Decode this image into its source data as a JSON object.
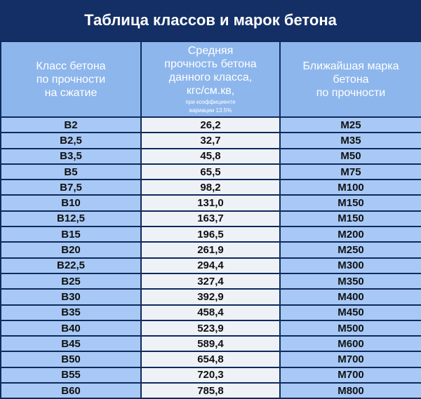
{
  "title": "Таблица классов и марок бетона",
  "table": {
    "header": [
      {
        "lines": [
          "Класс бетона",
          "по прочности",
          "на сжатие"
        ]
      },
      {
        "lines": [
          "Средняя",
          "прочность бетона",
          "данного класса,",
          "кгс/см.кв,"
        ],
        "note": [
          "при коэффициенте",
          "вариации 13.5%"
        ]
      },
      {
        "lines": [
          "Ближайшая марка",
          "бетона",
          "по прочности"
        ]
      }
    ],
    "rows": [
      [
        "В2",
        "26,2",
        "М25"
      ],
      [
        "В2,5",
        "32,7",
        "М35"
      ],
      [
        "В3,5",
        "45,8",
        "М50"
      ],
      [
        "В5",
        "65,5",
        "М75"
      ],
      [
        "В7,5",
        "98,2",
        "М100"
      ],
      [
        "В10",
        "131,0",
        "М150"
      ],
      [
        "В12,5",
        "163,7",
        "М150"
      ],
      [
        "В15",
        "196,5",
        "М200"
      ],
      [
        "В20",
        "261,9",
        "М250"
      ],
      [
        "В22,5",
        "294,4",
        "М300"
      ],
      [
        "В25",
        "327,4",
        "М350"
      ],
      [
        "В30",
        "392,9",
        "М400"
      ],
      [
        "В35",
        "458,4",
        "М450"
      ],
      [
        "В40",
        "523,9",
        "М500"
      ],
      [
        "В45",
        "589,4",
        "М600"
      ],
      [
        "В50",
        "654,8",
        "М700"
      ],
      [
        "В55",
        "720,3",
        "М700"
      ],
      [
        "В60",
        "785,8",
        "М800"
      ]
    ]
  }
}
